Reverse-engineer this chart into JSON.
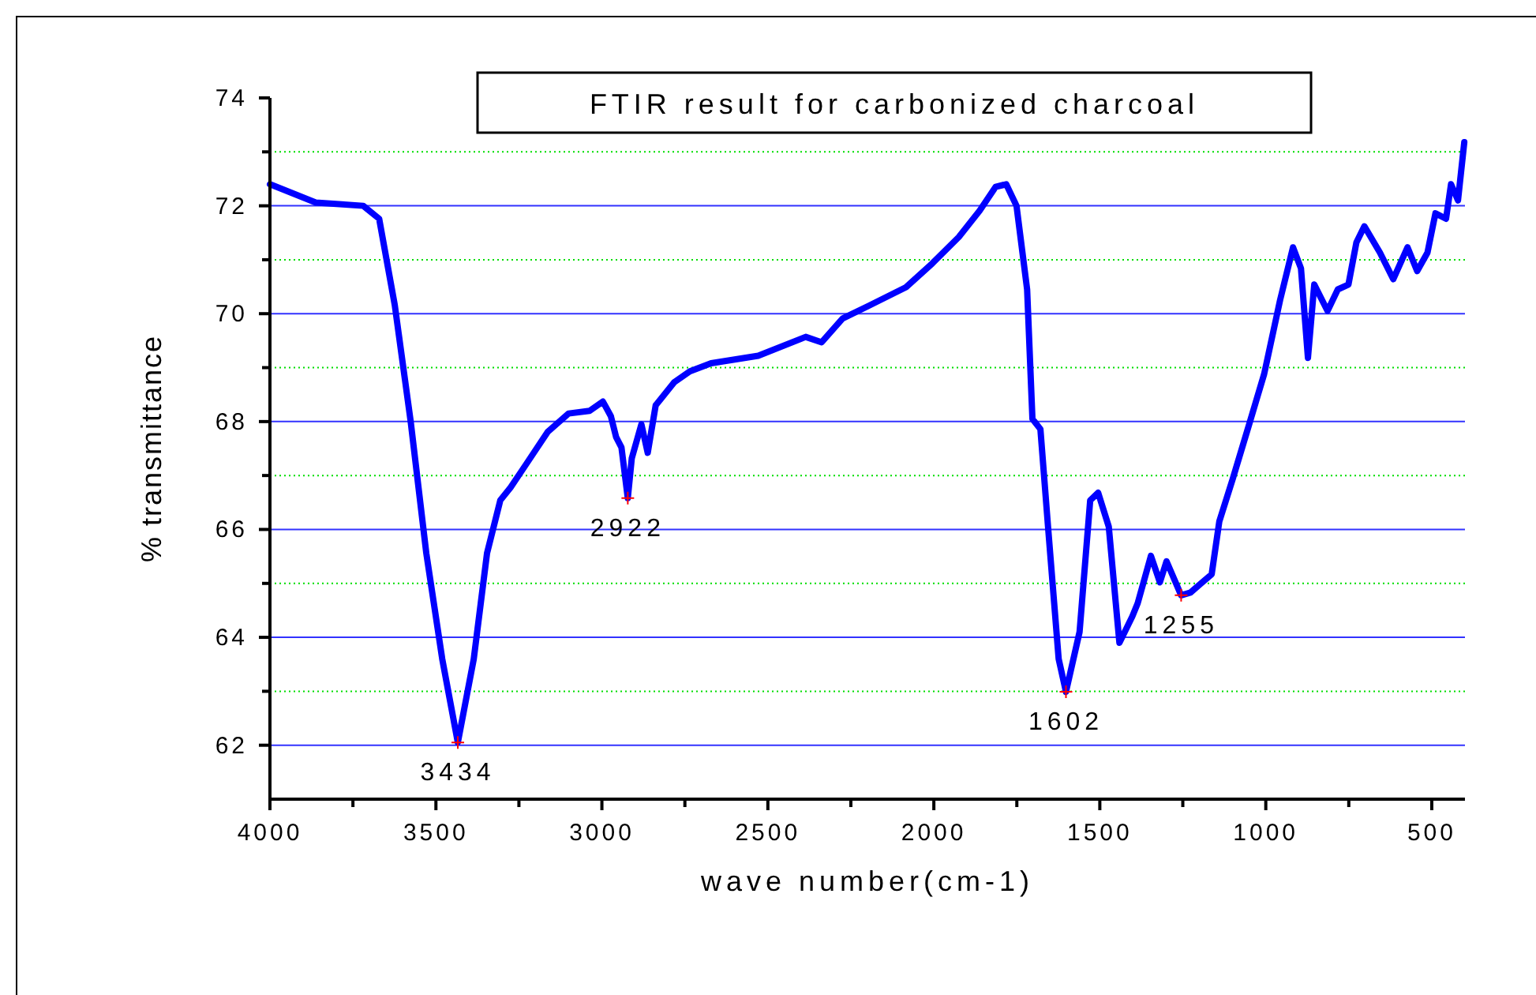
{
  "chart_data": {
    "type": "line",
    "title": "FTIR result for carbonized charcoal",
    "xlabel": "wave number(cm-1)",
    "ylabel": "% transmittance",
    "xlim": [
      4000,
      400
    ],
    "xticks": [
      4000,
      {
        "value": 3750,
        "label": null
      },
      3500,
      {
        "value": 3250,
        "label": null
      },
      3000,
      {
        "value": 2750,
        "label": null
      },
      2500,
      {
        "value": 2250,
        "label": null
      },
      2000,
      {
        "value": 1750,
        "label": null
      },
      1500,
      {
        "value": 1250,
        "label": null
      },
      1000,
      {
        "value": 750,
        "label": null
      },
      500
    ],
    "ylim": [
      61,
      74
    ],
    "yticks": [
      62,
      {
        "value": 63,
        "label": null
      },
      64,
      {
        "value": 65,
        "label": null
      },
      66,
      {
        "value": 67,
        "label": null
      },
      68,
      {
        "value": 69,
        "label": null
      },
      70,
      {
        "value": 71,
        "label": null
      },
      72,
      {
        "value": 73,
        "label": null
      },
      74
    ],
    "grid": "y",
    "line_style": "solid",
    "marker": "none",
    "series": [
      {
        "color": "#0000ff",
        "x": [
          4000,
          3862,
          3719,
          3671,
          3624,
          3576,
          3529,
          3481,
          3434,
          3386,
          3346,
          3306,
          3275,
          3227,
          3163,
          3100,
          3037,
          2997,
          2973,
          2957,
          2941,
          2922,
          2910,
          2881,
          2862,
          2838,
          2782,
          2735,
          2671,
          2529,
          2386,
          2338,
          2275,
          2195,
          2084,
          2005,
          1925,
          1862,
          1814,
          1782,
          1751,
          1719,
          1703,
          1679,
          1656,
          1624,
          1602,
          1561,
          1529,
          1505,
          1473,
          1441,
          1402,
          1386,
          1346,
          1319,
          1299,
          1255,
          1227,
          1163,
          1140,
          1100,
          1052,
          1005,
          957,
          918,
          894,
          873,
          854,
          814,
          783,
          751,
          727,
          703,
          656,
          616,
          573,
          544,
          513,
          489,
          457,
          442,
          421,
          402
        ],
        "values": [
          72.4,
          72.06,
          72.0,
          71.76,
          70.16,
          68.0,
          65.56,
          63.6,
          62.05,
          63.6,
          65.56,
          66.54,
          66.78,
          67.22,
          67.81,
          68.15,
          68.2,
          68.37,
          68.1,
          67.71,
          67.52,
          66.58,
          67.32,
          67.95,
          67.42,
          68.3,
          68.73,
          68.93,
          69.08,
          69.22,
          69.57,
          69.47,
          69.91,
          70.15,
          70.49,
          70.93,
          71.42,
          71.91,
          72.35,
          72.4,
          72.0,
          70.45,
          68.05,
          67.86,
          66.05,
          63.6,
          62.99,
          64.1,
          66.54,
          66.68,
          66.05,
          63.9,
          64.39,
          64.63,
          65.51,
          65.02,
          65.41,
          64.78,
          64.83,
          65.17,
          66.15,
          66.93,
          67.91,
          68.88,
          70.25,
          71.23,
          70.84,
          69.18,
          70.54,
          70.05,
          70.45,
          70.54,
          71.32,
          71.62,
          71.13,
          70.64,
          71.23,
          70.79,
          71.13,
          71.86,
          71.76,
          72.4,
          72.1,
          73.18
        ]
      },
      {
        "type": "scatter",
        "color": "#ff0000",
        "marker": "cross",
        "x": [
          3434,
          2922,
          1602,
          1255
        ],
        "values": [
          62.05,
          66.58,
          62.99,
          64.78
        ]
      }
    ],
    "annotations": [
      {
        "text": "3434",
        "x": 3434,
        "y": 62.05
      },
      {
        "text": "2922",
        "x": 2922,
        "y": 66.58
      },
      {
        "text": "1602",
        "x": 1602,
        "y": 62.99
      },
      {
        "text": "1255",
        "x": 1255,
        "y": 64.78
      }
    ]
  }
}
